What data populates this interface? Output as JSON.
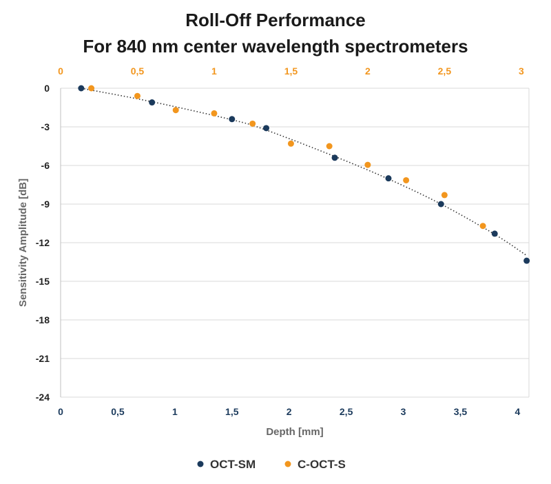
{
  "chart_data": {
    "type": "scatter",
    "title": [
      "Roll-Off Performance",
      "For 840 nm center wavelength spectrometers"
    ],
    "xlabel": "Depth [mm]",
    "ylabel": "Sensitivity Amplitude [dB]",
    "x_bottom": {
      "range": [
        0,
        4.1
      ],
      "ticks": [
        0,
        0.5,
        1,
        1.5,
        2,
        2.5,
        3,
        3.5,
        4
      ],
      "tick_labels": [
        "0",
        "0,5",
        "1",
        "1,5",
        "2",
        "2,5",
        "3",
        "3,5",
        "4"
      ]
    },
    "x_top": {
      "range": [
        0,
        3.05
      ],
      "ticks": [
        0,
        0.5,
        1,
        1.5,
        2,
        2.5,
        3
      ],
      "tick_labels": [
        "0",
        "0,5",
        "1",
        "1,5",
        "2",
        "2,5",
        "3"
      ]
    },
    "y": {
      "range": [
        -24,
        0
      ],
      "ticks": [
        0,
        -3,
        -6,
        -9,
        -12,
        -15,
        -18,
        -21,
        -24
      ],
      "tick_labels": [
        "0",
        "-3",
        "-6",
        "-9",
        "-12",
        "-15",
        "-18",
        "-21",
        "-24"
      ]
    },
    "grid": true,
    "legend_position": "bottom",
    "series": [
      {
        "name": "OCT-SM",
        "color": "#1b3a5c",
        "axis": "bottom",
        "x": [
          0.18,
          0.8,
          1.5,
          1.8,
          2.4,
          2.87,
          3.33,
          3.8,
          4.08
        ],
        "y": [
          0,
          -1.1,
          -2.4,
          -3.1,
          -5.4,
          -7.0,
          -9.0,
          -11.3,
          -13.4
        ]
      },
      {
        "name": "C-OCT-S",
        "color": "#f2961e",
        "axis": "top",
        "x": [
          0.2,
          0.5,
          0.75,
          1.0,
          1.25,
          1.5,
          1.75,
          2.0,
          2.25,
          2.5,
          2.75
        ],
        "y": [
          0,
          -0.6,
          -1.7,
          -1.95,
          -2.75,
          -4.3,
          -4.5,
          -5.95,
          -7.15,
          -8.3,
          -10.7
        ]
      }
    ],
    "trendline": {
      "style": "dotted",
      "color": "#333333",
      "axis": "bottom",
      "x": [
        0.18,
        0.8,
        1.5,
        1.8,
        2.4,
        2.87,
        3.33,
        3.8,
        4.08
      ],
      "y": [
        0,
        -1.05,
        -2.45,
        -3.25,
        -5.3,
        -7.05,
        -9.0,
        -11.35,
        -13.0
      ]
    }
  }
}
